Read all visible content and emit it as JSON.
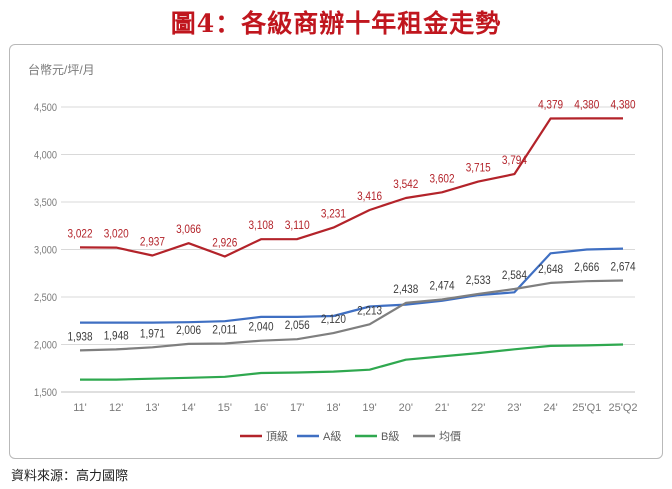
{
  "title": "圖4：各級商辦十年租金走勢",
  "source": "資料來源：高力國際",
  "chart_data": {
    "type": "line",
    "title": "圖4：各級商辦十年租金走勢",
    "ylabel": "台幣元/坪/月",
    "xlabel": "",
    "categories": [
      "11'",
      "12'",
      "13'",
      "14'",
      "15'",
      "16'",
      "17'",
      "18'",
      "19'",
      "20'",
      "21'",
      "22'",
      "23'",
      "24'",
      "25'Q1",
      "25'Q2"
    ],
    "ylim": [
      1500,
      4500
    ],
    "yticks": [
      "1,500",
      "2,000",
      "2,500",
      "3,000",
      "3,500",
      "4,000",
      "4,500"
    ],
    "yticks_values": [
      1500,
      2000,
      2500,
      3000,
      3500,
      4000,
      4500
    ],
    "grid": "horizontal",
    "legend": "bottom",
    "series": [
      {
        "name": "頂級",
        "color": "#b3232a",
        "values": [
          3022,
          3020,
          2937,
          3066,
          2926,
          3108,
          3110,
          3231,
          3416,
          3542,
          3602,
          3715,
          3794,
          4379,
          4380,
          4380
        ],
        "labels": [
          "3,022",
          "3,020",
          "2,937",
          "3,066",
          "2,926",
          "3,108",
          "3,110",
          "3,231",
          "3,416",
          "3,542",
          "3,602",
          "3,715",
          "3,794",
          "4,379",
          "4,380",
          "4,380"
        ],
        "label_color": "#b3232a"
      },
      {
        "name": "A級",
        "color": "#3f6fc2",
        "values": [
          2230,
          2230,
          2230,
          2235,
          2245,
          2290,
          2290,
          2300,
          2400,
          2420,
          2460,
          2520,
          2550,
          2960,
          3000,
          3010
        ]
      },
      {
        "name": "B級",
        "color": "#2fa84f",
        "values": [
          1630,
          1630,
          1640,
          1650,
          1660,
          1700,
          1705,
          1715,
          1735,
          1840,
          1875,
          1910,
          1950,
          1985,
          1990,
          2000
        ]
      },
      {
        "name": "均價",
        "color": "#7f7f7f",
        "values": [
          1938,
          1948,
          1971,
          2006,
          2011,
          2040,
          2056,
          2120,
          2213,
          2438,
          2474,
          2533,
          2584,
          2648,
          2666,
          2674
        ],
        "labels": [
          "1,938",
          "1,948",
          "1,971",
          "2,006",
          "2,011",
          "2,040",
          "2,056",
          "2,120",
          "2,213",
          "2,438",
          "2,474",
          "2,533",
          "2,584",
          "2,648",
          "2,666",
          "2,674"
        ],
        "label_color": "#3b3b3b"
      }
    ]
  }
}
